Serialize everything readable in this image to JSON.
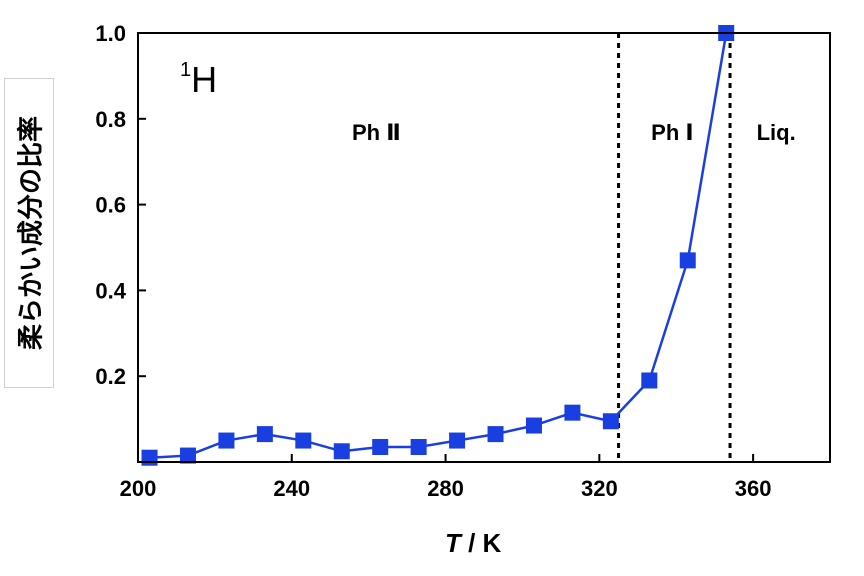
{
  "chart_data": {
    "type": "line",
    "title": "",
    "xlabel_symbol": "T",
    "xlabel_unit": " / K",
    "ylabel": "柔らかい成分の比率",
    "nucleus_mass": "1",
    "nucleus_symbol": "H",
    "xlim": [
      200,
      380
    ],
    "ylim": [
      0,
      1.0
    ],
    "x_ticks": [
      200,
      240,
      280,
      320,
      360
    ],
    "x_tick_labels": [
      "200",
      "240",
      "280",
      "320",
      "360"
    ],
    "y_ticks": [
      0.2,
      0.4,
      0.6,
      0.8,
      1.0
    ],
    "y_tick_labels": [
      "0.2",
      "0.4",
      "0.6",
      "0.8",
      "1.0"
    ],
    "grid": false,
    "series": [
      {
        "color": "#1a3fe0",
        "marker": "square",
        "x": [
          203,
          213,
          223,
          233,
          243,
          253,
          263,
          273,
          283,
          293,
          303,
          313,
          323,
          333,
          343,
          353
        ],
        "y": [
          0.01,
          0.015,
          0.05,
          0.065,
          0.05,
          0.025,
          0.035,
          0.035,
          0.05,
          0.065,
          0.085,
          0.115,
          0.095,
          0.19,
          0.47,
          1.0
        ]
      }
    ],
    "phase_boundaries": [
      325,
      354
    ],
    "regions": [
      {
        "label": "Ph  Ⅱ",
        "x": 262
      },
      {
        "label": "Ph  Ⅰ",
        "x": 339
      },
      {
        "label": "Liq.",
        "x": 366
      }
    ]
  }
}
